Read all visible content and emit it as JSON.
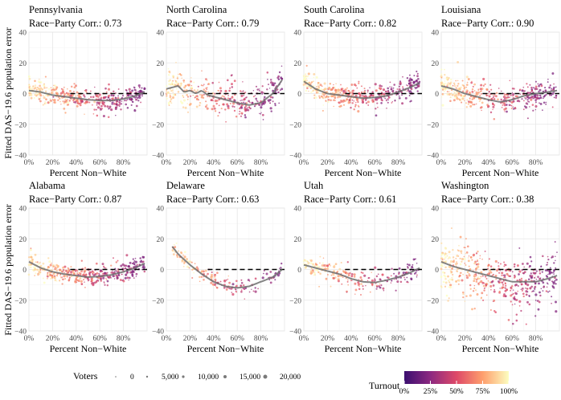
{
  "figure": {
    "ylabel": "Fitted DAS−19.6 population error",
    "xlabel": "Percent Non−White",
    "x_ticks": [
      "0%",
      "20%",
      "40%",
      "60%",
      "80%"
    ],
    "y_ticks": [
      "−40",
      "−20",
      "0",
      "20",
      "40"
    ],
    "legend_voters_title": "Voters",
    "legend_voters_labels": [
      "0",
      "5,000",
      "10,000",
      "15,000",
      "20,000"
    ],
    "legend_turnout_title": "Turnout",
    "legend_turnout_labels": [
      "0%",
      "25%",
      "50%",
      "75%",
      "100%"
    ],
    "turnout_colors": [
      "#3b0f70",
      "#8c2981",
      "#de4968",
      "#fe9f6d",
      "#fcfdbf"
    ]
  },
  "chart_data": [
    {
      "type": "scatter",
      "title": "Pennsylvania",
      "subtitle": "Race−Party Corr.: 0.73",
      "xlim": [
        0,
        100
      ],
      "ylim": [
        -40,
        40
      ],
      "smooth_x": [
        0,
        10,
        20,
        30,
        40,
        50,
        60,
        70,
        80,
        90,
        98
      ],
      "smooth_y": [
        2,
        1,
        -1,
        -2,
        -3,
        -4,
        -4.5,
        -4.5,
        -3.5,
        -1.5,
        1
      ],
      "spread": 4,
      "density": 1.0
    },
    {
      "type": "scatter",
      "title": "North Carolina",
      "subtitle": "Race−Party Corr.: 0.79",
      "xlim": [
        0,
        100
      ],
      "ylim": [
        -40,
        40
      ],
      "smooth_x": [
        0,
        5,
        10,
        15,
        20,
        25,
        30,
        35,
        40,
        50,
        60,
        70,
        80,
        90,
        98
      ],
      "smooth_y": [
        3,
        4,
        5,
        1,
        2,
        0,
        2,
        -1,
        -2,
        -4,
        -6,
        -7.5,
        -6,
        0,
        9
      ],
      "spread": 6,
      "density": 0.9
    },
    {
      "type": "scatter",
      "title": "South Carolina",
      "subtitle": "Race−Party Corr.: 0.82",
      "xlim": [
        0,
        100
      ],
      "ylim": [
        -40,
        40
      ],
      "smooth_x": [
        0,
        10,
        20,
        30,
        40,
        50,
        60,
        70,
        80,
        90,
        98
      ],
      "smooth_y": [
        8,
        3,
        0,
        -1,
        -2,
        -3,
        -2.5,
        -1.5,
        1,
        4,
        7
      ],
      "spread": 4,
      "density": 1.1
    },
    {
      "type": "scatter",
      "title": "Louisiana",
      "subtitle": "Race−Party Corr.: 0.90",
      "xlim": [
        0,
        100
      ],
      "ylim": [
        -40,
        40
      ],
      "smooth_x": [
        0,
        10,
        20,
        30,
        40,
        50,
        60,
        70,
        80,
        90,
        98
      ],
      "smooth_y": [
        5,
        3,
        0,
        -2,
        -4,
        -5.5,
        -4,
        -1.5,
        0,
        1,
        2
      ],
      "spread": 5,
      "density": 1.0
    },
    {
      "type": "scatter",
      "title": "Alabama",
      "subtitle": "Race−Party Corr.: 0.87",
      "xlim": [
        0,
        100
      ],
      "ylim": [
        -40,
        40
      ],
      "smooth_x": [
        0,
        10,
        20,
        30,
        40,
        50,
        60,
        70,
        80,
        90,
        98
      ],
      "smooth_y": [
        5,
        1,
        -1.5,
        -3,
        -4,
        -5,
        -4.5,
        -3.5,
        -1.5,
        1,
        4
      ],
      "spread": 3.5,
      "density": 1.0
    },
    {
      "type": "scatter",
      "title": "Delaware",
      "subtitle": "Race−Party Corr.: 0.63",
      "xlim": [
        0,
        100
      ],
      "ylim": [
        -40,
        40
      ],
      "smooth_x": [
        5,
        10,
        20,
        30,
        40,
        50,
        60,
        70,
        80,
        90,
        98
      ],
      "smooth_y": [
        15,
        10,
        3,
        -3,
        -8,
        -11,
        -12,
        -11,
        -8,
        -5,
        0
      ],
      "spread": 3,
      "density": 0.4
    },
    {
      "type": "scatter",
      "title": "Utah",
      "subtitle": "Race−Party Corr.: 0.61",
      "xlim": [
        0,
        100
      ],
      "ylim": [
        -40,
        40
      ],
      "smooth_x": [
        0,
        10,
        20,
        30,
        40,
        50,
        60,
        70,
        80,
        90,
        98
      ],
      "smooth_y": [
        3,
        1,
        -1,
        -3,
        -6,
        -8,
        -8.5,
        -7,
        -5,
        -2,
        1
      ],
      "spread": 4,
      "density": 0.6
    },
    {
      "type": "scatter",
      "title": "Washington",
      "subtitle": "Race−Party Corr.: 0.38",
      "xlim": [
        0,
        100
      ],
      "ylim": [
        -40,
        40
      ],
      "smooth_x": [
        0,
        10,
        20,
        30,
        40,
        50,
        60,
        70,
        80,
        90,
        98
      ],
      "smooth_y": [
        5,
        2,
        0,
        -2,
        -4,
        -6,
        -8,
        -8,
        -8,
        -6,
        -4
      ],
      "spread": 8,
      "density": 1.2
    }
  ]
}
